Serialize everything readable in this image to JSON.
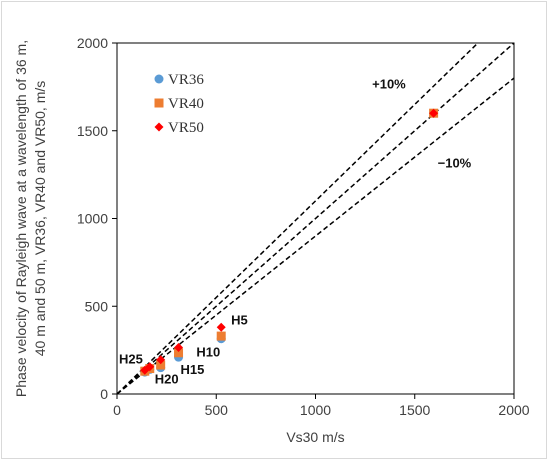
{
  "chart_data": {
    "type": "scatter",
    "title": "",
    "xlabel": "Vs30 m/s",
    "ylabel_lines": [
      "Phase velocity of Rayleigh wave at a wavelength of 36 m,",
      "40 m and 50 m, VR36, VR40 and VR50, m/s"
    ],
    "xlim": [
      0,
      2000
    ],
    "ylim": [
      0,
      2000
    ],
    "xticks": [
      0,
      500,
      1000,
      1500,
      2000
    ],
    "yticks": [
      0,
      500,
      1000,
      1500,
      2000
    ],
    "grid": false,
    "legend_position": "top-left",
    "series": [
      {
        "name": "VR36",
        "marker": "circle",
        "color": "#5b9bd5",
        "x": [
          140,
          165,
          220,
          310,
          525,
          1595
        ],
        "y": [
          125,
          140,
          150,
          210,
          315,
          1600
        ]
      },
      {
        "name": "VR40",
        "marker": "square",
        "color": "#ed7d31",
        "x": [
          140,
          165,
          220,
          310,
          525,
          1595
        ],
        "y": [
          130,
          145,
          165,
          235,
          330,
          1600
        ]
      },
      {
        "name": "VR50",
        "marker": "diamond",
        "color": "#ff0000",
        "x": [
          140,
          165,
          220,
          310,
          525,
          1595
        ],
        "y": [
          135,
          155,
          195,
          265,
          380,
          1600
        ]
      }
    ],
    "reference_lines": [
      {
        "slope": 1.1,
        "style": "dashed",
        "color": "#000000"
      },
      {
        "slope": 1.0,
        "style": "dashed",
        "color": "#000000"
      },
      {
        "slope": 0.9,
        "style": "dashed",
        "color": "#000000"
      }
    ],
    "annotations": [
      {
        "text": "+10%",
        "x": 1370,
        "y": 1740
      },
      {
        "text": "−10%",
        "x": 1700,
        "y": 1290
      }
    ],
    "point_labels": [
      {
        "text": "H5",
        "x": 575,
        "y": 395
      },
      {
        "text": "H10",
        "x": 400,
        "y": 215
      },
      {
        "text": "H15",
        "x": 320,
        "y": 115
      },
      {
        "text": "H20",
        "x": 190,
        "y": 60
      },
      {
        "text": "H25",
        "x": 10,
        "y": 175
      }
    ]
  }
}
